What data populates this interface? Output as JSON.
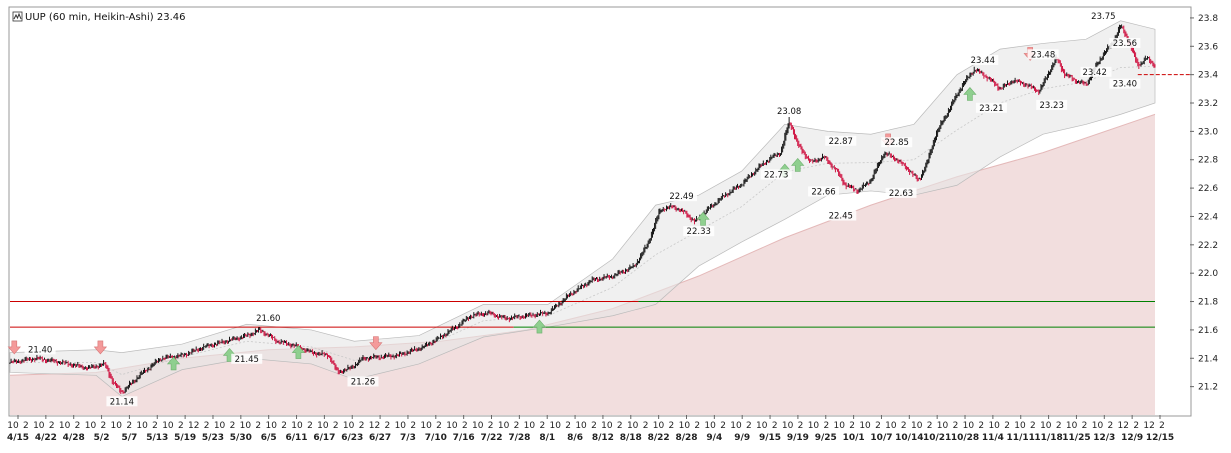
{
  "title": "UUP (60 min, Heikin-Ashi) 23.46",
  "title_icon": "chart-logo-icon",
  "chart_data": {
    "type": "line",
    "chart_style": "heikin-ashi candlestick",
    "interval": "60 min",
    "symbol": "UUP",
    "last_price": 23.46,
    "y_axis": {
      "position": "right",
      "ylim": [
        21.0,
        23.87
      ],
      "ticks": [
        "21.2",
        "21.4",
        "21.6",
        "21.8",
        "22.0",
        "22.2",
        "22.4",
        "22.6",
        "22.8",
        "23.0",
        "23.2",
        "23.4",
        "23.6",
        "23.8"
      ]
    },
    "x_date_labels": [
      "4/15",
      "4/22",
      "4/28",
      "5/2",
      "5/7",
      "5/13",
      "5/19",
      "5/23",
      "5/30",
      "6/5",
      "6/11",
      "6/17",
      "6/23",
      "6/27",
      "7/3",
      "7/10",
      "7/16",
      "7/22",
      "7/28",
      "8/1",
      "8/6",
      "8/12",
      "8/18",
      "8/22",
      "8/28",
      "9/4",
      "9/9",
      "9/15",
      "9/19",
      "9/25",
      "10/1",
      "10/7",
      "10/14",
      "10/21",
      "10/28",
      "11/4",
      "11/11",
      "11/18",
      "11/25",
      "12/3",
      "12/9",
      "12/15"
    ],
    "x_hour_labels": [
      "10",
      "2",
      "10",
      "2",
      "10",
      "2",
      "10",
      "2",
      "10",
      "2",
      "10",
      "2",
      "10",
      "2",
      "12",
      "2",
      "10",
      "2",
      "10",
      "2",
      "10",
      "2",
      "10",
      "2",
      "10",
      "2",
      "10",
      "2",
      "12",
      "2",
      "10",
      "2",
      "10",
      "2",
      "10",
      "2",
      "10",
      "2",
      "10",
      "2",
      "10",
      "2",
      "10",
      "2",
      "10",
      "2",
      "10",
      "2",
      "10",
      "2",
      "10",
      "2",
      "10",
      "2",
      "10",
      "2",
      "10",
      "2",
      "10",
      "2",
      "10",
      "2",
      "10",
      "2",
      "10",
      "2",
      "10",
      "2",
      "10",
      "2",
      "10",
      "2",
      "10",
      "2",
      "10",
      "2",
      "10",
      "2",
      "10",
      "2",
      "10",
      "2",
      "10",
      "2",
      "10",
      "2",
      "12",
      "2",
      "12",
      "2"
    ],
    "price_path": [
      {
        "d": 0,
        "p": 21.37
      },
      {
        "d": 6,
        "p": 21.4
      },
      {
        "d": 12,
        "p": 21.37
      },
      {
        "d": 18,
        "p": 21.33
      },
      {
        "d": 22,
        "p": 21.36
      },
      {
        "d": 24,
        "p": 21.22
      },
      {
        "d": 26,
        "p": 21.16
      },
      {
        "d": 30,
        "p": 21.28
      },
      {
        "d": 35,
        "p": 21.4
      },
      {
        "d": 40,
        "p": 21.42
      },
      {
        "d": 45,
        "p": 21.48
      },
      {
        "d": 50,
        "p": 21.52
      },
      {
        "d": 55,
        "p": 21.56
      },
      {
        "d": 58,
        "p": 21.6
      },
      {
        "d": 62,
        "p": 21.52
      },
      {
        "d": 66,
        "p": 21.49
      },
      {
        "d": 70,
        "p": 21.44
      },
      {
        "d": 74,
        "p": 21.42
      },
      {
        "d": 76,
        "p": 21.3
      },
      {
        "d": 79,
        "p": 21.33
      },
      {
        "d": 82,
        "p": 21.4
      },
      {
        "d": 90,
        "p": 21.42
      },
      {
        "d": 96,
        "p": 21.48
      },
      {
        "d": 100,
        "p": 21.55
      },
      {
        "d": 104,
        "p": 21.63
      },
      {
        "d": 107,
        "p": 21.7
      },
      {
        "d": 111,
        "p": 21.72
      },
      {
        "d": 115,
        "p": 21.68
      },
      {
        "d": 120,
        "p": 21.7
      },
      {
        "d": 125,
        "p": 21.72
      },
      {
        "d": 130,
        "p": 21.85
      },
      {
        "d": 135,
        "p": 21.95
      },
      {
        "d": 140,
        "p": 21.98
      },
      {
        "d": 145,
        "p": 22.05
      },
      {
        "d": 148,
        "p": 22.2
      },
      {
        "d": 151,
        "p": 22.45
      },
      {
        "d": 154,
        "p": 22.47
      },
      {
        "d": 157,
        "p": 22.42
      },
      {
        "d": 159,
        "p": 22.36
      },
      {
        "d": 162,
        "p": 22.45
      },
      {
        "d": 166,
        "p": 22.55
      },
      {
        "d": 170,
        "p": 22.63
      },
      {
        "d": 174,
        "p": 22.75
      },
      {
        "d": 177,
        "p": 22.82
      },
      {
        "d": 179,
        "p": 22.85
      },
      {
        "d": 181,
        "p": 23.08
      },
      {
        "d": 183,
        "p": 22.9
      },
      {
        "d": 186,
        "p": 22.78
      },
      {
        "d": 189,
        "p": 22.82
      },
      {
        "d": 192,
        "p": 22.72
      },
      {
        "d": 194,
        "p": 22.62
      },
      {
        "d": 197,
        "p": 22.58
      },
      {
        "d": 200,
        "p": 22.66
      },
      {
        "d": 203,
        "p": 22.85
      },
      {
        "d": 206,
        "p": 22.8
      },
      {
        "d": 209,
        "p": 22.72
      },
      {
        "d": 211,
        "p": 22.65
      },
      {
        "d": 213,
        "p": 22.78
      },
      {
        "d": 215,
        "p": 22.98
      },
      {
        "d": 218,
        "p": 23.15
      },
      {
        "d": 221,
        "p": 23.32
      },
      {
        "d": 224,
        "p": 23.44
      },
      {
        "d": 227,
        "p": 23.38
      },
      {
        "d": 230,
        "p": 23.3
      },
      {
        "d": 233,
        "p": 23.36
      },
      {
        "d": 236,
        "p": 23.33
      },
      {
        "d": 239,
        "p": 23.28
      },
      {
        "d": 241,
        "p": 23.4
      },
      {
        "d": 243,
        "p": 23.52
      },
      {
        "d": 245,
        "p": 23.4
      },
      {
        "d": 248,
        "p": 23.35
      },
      {
        "d": 250,
        "p": 23.33
      },
      {
        "d": 252,
        "p": 23.45
      },
      {
        "d": 254,
        "p": 23.55
      },
      {
        "d": 256,
        "p": 23.62
      },
      {
        "d": 258,
        "p": 23.75
      },
      {
        "d": 260,
        "p": 23.62
      },
      {
        "d": 262,
        "p": 23.46
      },
      {
        "d": 264,
        "p": 23.52
      },
      {
        "d": 266,
        "p": 23.46
      }
    ],
    "keltner_band": [
      {
        "d": 0,
        "u": 21.44,
        "l": 21.3
      },
      {
        "d": 20,
        "u": 21.46,
        "l": 21.28
      },
      {
        "d": 26,
        "u": 21.44,
        "l": 21.13
      },
      {
        "d": 40,
        "u": 21.5,
        "l": 21.32
      },
      {
        "d": 55,
        "u": 21.64,
        "l": 21.4
      },
      {
        "d": 70,
        "u": 21.6,
        "l": 21.36
      },
      {
        "d": 80,
        "u": 21.52,
        "l": 21.25
      },
      {
        "d": 95,
        "u": 21.56,
        "l": 21.36
      },
      {
        "d": 110,
        "u": 21.78,
        "l": 21.55
      },
      {
        "d": 125,
        "u": 21.78,
        "l": 21.62
      },
      {
        "d": 140,
        "u": 22.1,
        "l": 21.7
      },
      {
        "d": 150,
        "u": 22.48,
        "l": 21.78
      },
      {
        "d": 160,
        "u": 22.55,
        "l": 22.05
      },
      {
        "d": 170,
        "u": 22.72,
        "l": 22.22
      },
      {
        "d": 180,
        "u": 23.05,
        "l": 22.38
      },
      {
        "d": 190,
        "u": 23.0,
        "l": 22.55
      },
      {
        "d": 200,
        "u": 22.98,
        "l": 22.58
      },
      {
        "d": 210,
        "u": 23.05,
        "l": 22.55
      },
      {
        "d": 220,
        "u": 23.4,
        "l": 22.62
      },
      {
        "d": 230,
        "u": 23.58,
        "l": 22.82
      },
      {
        "d": 240,
        "u": 23.62,
        "l": 22.98
      },
      {
        "d": 250,
        "u": 23.65,
        "l": 23.05
      },
      {
        "d": 258,
        "u": 23.78,
        "l": 23.12
      },
      {
        "d": 266,
        "u": 23.72,
        "l": 23.2
      }
    ],
    "sma_area": [
      {
        "d": 0,
        "v": 21.28
      },
      {
        "d": 20,
        "v": 21.3
      },
      {
        "d": 40,
        "v": 21.4
      },
      {
        "d": 60,
        "v": 21.46
      },
      {
        "d": 80,
        "v": 21.48
      },
      {
        "d": 100,
        "v": 21.52
      },
      {
        "d": 120,
        "v": 21.6
      },
      {
        "d": 140,
        "v": 21.75
      },
      {
        "d": 160,
        "v": 21.98
      },
      {
        "d": 180,
        "v": 22.25
      },
      {
        "d": 200,
        "v": 22.48
      },
      {
        "d": 220,
        "v": 22.68
      },
      {
        "d": 240,
        "v": 22.85
      },
      {
        "d": 266,
        "v": 23.12
      }
    ],
    "horizontal_lines": [
      {
        "value": 21.8,
        "color": "#cc0000",
        "x_range": [
          0,
          146
        ]
      },
      {
        "value": 21.8,
        "color": "#008000",
        "x_range": [
          146,
          266
        ]
      },
      {
        "value": 21.62,
        "color": "#cc0000",
        "x_range": [
          0,
          117
        ]
      },
      {
        "value": 21.62,
        "color": "#008000",
        "x_range": [
          117,
          266
        ]
      },
      {
        "value": 23.4,
        "color": "#cc0000",
        "x_range": [
          262,
          276
        ],
        "dashed": true
      }
    ],
    "annotations": [
      {
        "text": "21.40",
        "d": 7,
        "p": 21.4,
        "pos": "above"
      },
      {
        "text": "21.14",
        "d": 26,
        "p": 21.16,
        "pos": "below"
      },
      {
        "text": "21.45",
        "d": 55,
        "p": 21.46,
        "pos": "below"
      },
      {
        "text": "21.60",
        "d": 60,
        "p": 21.62,
        "pos": "above"
      },
      {
        "text": "21.26",
        "d": 82,
        "p": 21.3,
        "pos": "below"
      },
      {
        "text": "22.49",
        "d": 156,
        "p": 22.48,
        "pos": "above"
      },
      {
        "text": "22.33",
        "d": 160,
        "p": 22.36,
        "pos": "below"
      },
      {
        "text": "23.08",
        "d": 181,
        "p": 23.08,
        "pos": "above"
      },
      {
        "text": "22.73",
        "d": 178,
        "p": 22.76,
        "pos": "below"
      },
      {
        "text": "22.87",
        "d": 193,
        "p": 22.87,
        "pos": "above"
      },
      {
        "text": "22.66",
        "d": 189,
        "p": 22.64,
        "pos": "below"
      },
      {
        "text": "22.45",
        "d": 193,
        "p": 22.47,
        "pos": "below"
      },
      {
        "text": "22.85",
        "d": 206,
        "p": 22.86,
        "pos": "above"
      },
      {
        "text": "22.63",
        "d": 207,
        "p": 22.63,
        "pos": "below"
      },
      {
        "text": "23.44",
        "d": 226,
        "p": 23.44,
        "pos": "above"
      },
      {
        "text": "23.21",
        "d": 228,
        "p": 23.23,
        "pos": "below"
      },
      {
        "text": "23.48",
        "d": 240,
        "p": 23.48,
        "pos": "above"
      },
      {
        "text": "23.23",
        "d": 242,
        "p": 23.25,
        "pos": "below"
      },
      {
        "text": "23.42",
        "d": 248,
        "p": 23.42,
        "pos": "right"
      },
      {
        "text": "23.75",
        "d": 254,
        "p": 23.75,
        "pos": "above"
      },
      {
        "text": "23.56",
        "d": 259,
        "p": 23.56,
        "pos": "above"
      },
      {
        "text": "23.40",
        "d": 259,
        "p": 23.4,
        "pos": "below"
      }
    ],
    "signals": [
      {
        "type": "sell",
        "d": 1,
        "p": 21.48
      },
      {
        "type": "sell",
        "d": 21,
        "p": 21.48
      },
      {
        "type": "buy",
        "d": 38,
        "p": 21.36
      },
      {
        "type": "buy",
        "d": 51,
        "p": 21.42
      },
      {
        "type": "buy",
        "d": 67,
        "p": 21.44
      },
      {
        "type": "sell",
        "d": 85,
        "p": 21.51
      },
      {
        "type": "buy",
        "d": 123,
        "p": 21.62
      },
      {
        "type": "buy",
        "d": 161,
        "p": 22.38
      },
      {
        "type": "buy",
        "d": 180,
        "p": 22.72
      },
      {
        "type": "buy",
        "d": 183,
        "p": 22.76
      },
      {
        "type": "sell",
        "d": 204,
        "p": 22.94
      },
      {
        "type": "buy",
        "d": 223,
        "p": 23.26
      },
      {
        "type": "sell",
        "d": 237,
        "p": 23.55
      }
    ],
    "colors": {
      "up": "#000000",
      "down": "#cc0033",
      "band": "#e6e6e6",
      "sma": "#f2dede",
      "grid": "#cccccc"
    }
  }
}
